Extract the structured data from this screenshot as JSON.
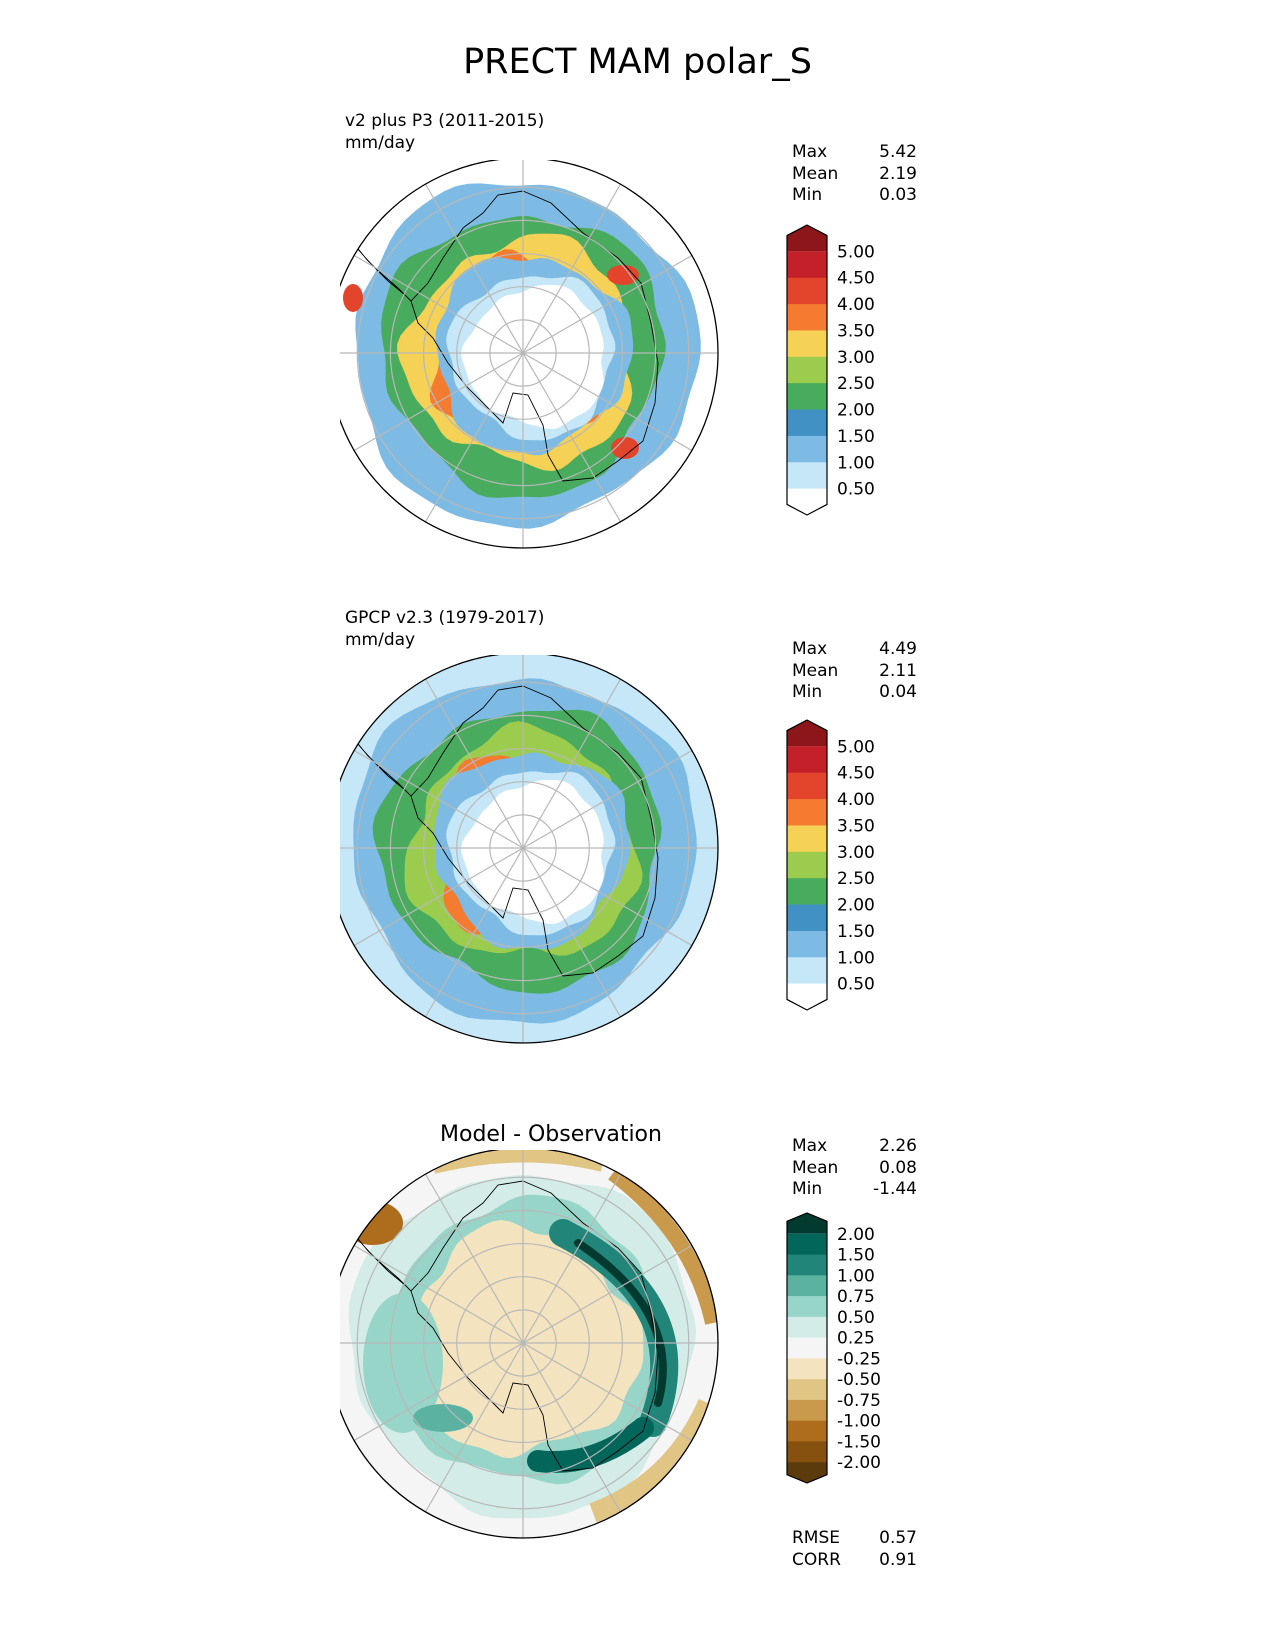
{
  "page_title": "PRECT MAM polar_S",
  "colors": {
    "precip_levels": [
      "#ffffff",
      "#c6e7f7",
      "#7ebbe4",
      "#4291c4",
      "#48ab5e",
      "#9ccc4e",
      "#f5d155",
      "#f47b30",
      "#e3452c",
      "#c4202a",
      "#8c1619"
    ],
    "diff_levels": [
      "#5b3a0c",
      "#86500e",
      "#ad6d1d",
      "#c99a4c",
      "#e0c585",
      "#f3e4bf",
      "#f5f5f5",
      "#d3ece7",
      "#98d5c9",
      "#5bb2a1",
      "#228579",
      "#03665b",
      "#033a2f"
    ],
    "coast": "#000000",
    "grid": "#b8b8b8"
  },
  "chart_data": [
    {
      "type": "heatmap",
      "projection": "south polar stereographic",
      "title": "v2 plus P3 (2011-2015)",
      "units": "mm/day",
      "stats": {
        "labels": [
          "Max",
          "Mean",
          "Min"
        ],
        "values": [
          "5.42",
          "2.19",
          "0.03"
        ]
      },
      "colorbar": {
        "ticks": [
          "5.00",
          "4.50",
          "4.00",
          "3.50",
          "3.00",
          "2.50",
          "2.00",
          "1.50",
          "1.00",
          "0.50"
        ],
        "extend": "both"
      },
      "ring_levels": [
        0.3,
        1.2,
        2.3,
        3.1,
        3.9
      ]
    },
    {
      "type": "heatmap",
      "projection": "south polar stereographic",
      "title": "GPCP v2.3 (1979-2017)",
      "units": "mm/day",
      "stats": {
        "labels": [
          "Max",
          "Mean",
          "Min"
        ],
        "values": [
          "4.49",
          "2.11",
          "0.04"
        ]
      },
      "colorbar": {
        "ticks": [
          "5.00",
          "4.50",
          "4.00",
          "3.50",
          "3.00",
          "2.50",
          "2.00",
          "1.50",
          "1.00",
          "0.50"
        ],
        "extend": "both"
      },
      "ring_levels": [
        0.6,
        1.3,
        2.1,
        2.9,
        3.7
      ]
    },
    {
      "type": "heatmap",
      "projection": "south polar stereographic",
      "title": "Model - Observation",
      "stats": {
        "labels": [
          "Max",
          "Mean",
          "Min"
        ],
        "values": [
          "2.26",
          "0.08",
          "-1.44"
        ]
      },
      "colorbar": {
        "ticks": [
          "2.00",
          "1.50",
          "1.00",
          "0.75",
          "0.50",
          "0.25",
          "-0.25",
          "-0.50",
          "-0.75",
          "-1.00",
          "-1.50",
          "-2.00"
        ],
        "extend": "both"
      },
      "metrics": {
        "labels": [
          "RMSE",
          "CORR"
        ],
        "values": [
          "0.57",
          "0.91"
        ]
      },
      "ring_levels": [
        0.0,
        0.3,
        0.6,
        -0.4
      ]
    }
  ]
}
